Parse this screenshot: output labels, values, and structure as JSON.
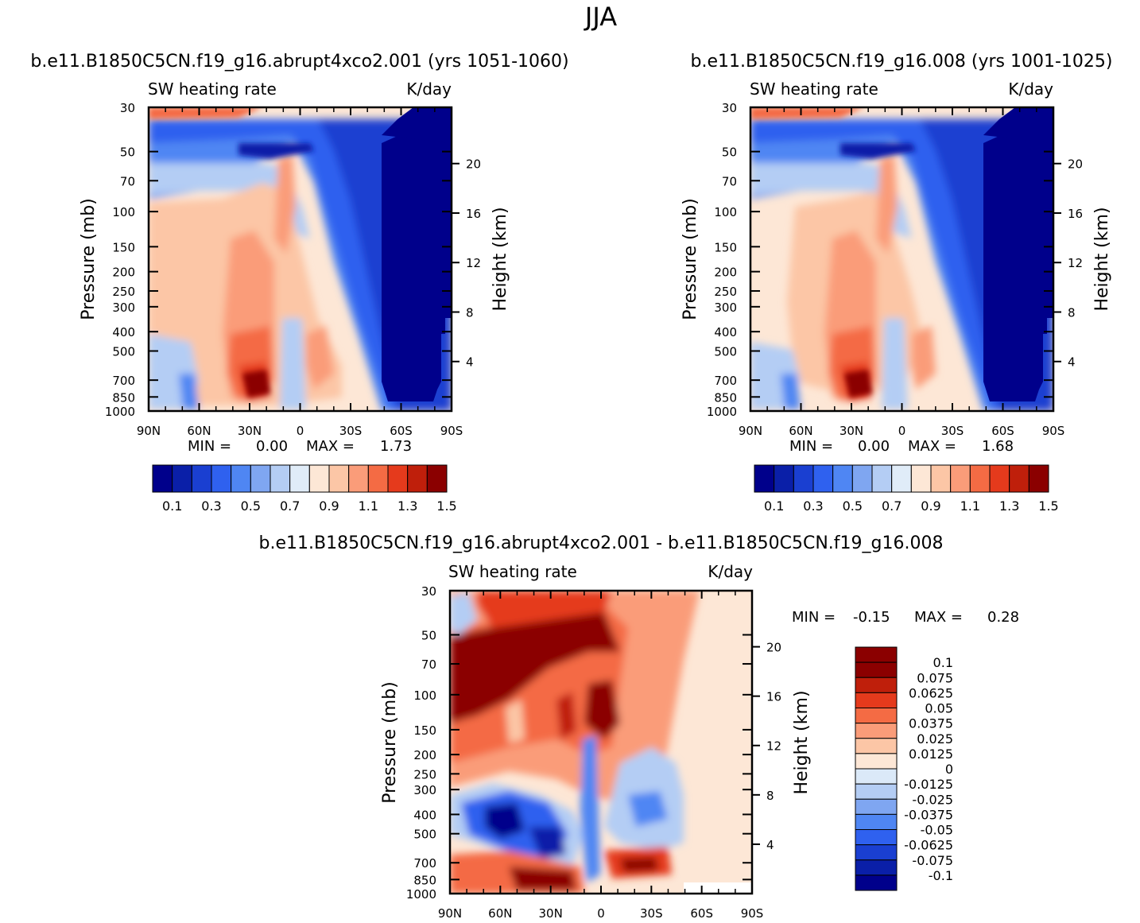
{
  "figure": {
    "title": "JJA",
    "colors": {
      "abs_scale": [
        "#00008b",
        "#0a1fa8",
        "#1a3fd1",
        "#2f61ef",
        "#4f86f3",
        "#7fa6f1",
        "#b4cdf4",
        "#e0ecf8",
        "#fde7d6",
        "#fcc6a6",
        "#fa9c79",
        "#f46b44",
        "#e53a1c",
        "#bf1f0b",
        "#8b0000"
      ],
      "diff_scale": [
        "#00008b",
        "#0a1fa8",
        "#1a3fd1",
        "#2f61ef",
        "#4f86f3",
        "#7fa6f1",
        "#b4cdf4",
        "#dbe9f8",
        "#fde7d6",
        "#fcc6a6",
        "#fa9c79",
        "#f46b44",
        "#e53a1c",
        "#bf1f0b",
        "#8b0000"
      ]
    }
  },
  "chart_data": [
    {
      "id": "panel-a",
      "type": "heatmap",
      "title": "b.e11.B1850C5CN.f19_g16.abrupt4xco2.001 (yrs 1051-1060)",
      "left_label": "SW heating rate",
      "right_label": "K/day",
      "xlabel": "",
      "ylabel": "Pressure (mb)",
      "ylabel_right": "Height (km)",
      "x_ticks": [
        "90N",
        "60N",
        "30N",
        "0",
        "30S",
        "60S",
        "90S"
      ],
      "y_ticks": [
        "30",
        "50",
        "70",
        "100",
        "150",
        "200",
        "250",
        "300",
        "400",
        "500",
        "700",
        "850",
        "1000"
      ],
      "y_ticks_right": [
        "20",
        "16",
        "12",
        "8",
        "4"
      ],
      "min_label": "MIN =",
      "min_value": "0.00",
      "max_label": "MAX =",
      "max_value": "1.73",
      "colorbar_labels": [
        "0.1",
        "0.3",
        "0.5",
        "0.7",
        "0.9",
        "1.1",
        "1.3",
        "1.5"
      ],
      "levels": [
        0.1,
        0.2,
        0.3,
        0.4,
        0.5,
        0.6,
        0.7,
        0.8,
        0.9,
        1.0,
        1.1,
        1.2,
        1.3,
        1.4,
        1.5
      ]
    },
    {
      "id": "panel-b",
      "type": "heatmap",
      "title": "b.e11.B1850C5CN.f19_g16.008 (yrs 1001-1025)",
      "left_label": "SW heating rate",
      "right_label": "K/day",
      "xlabel": "",
      "ylabel": "Pressure (mb)",
      "ylabel_right": "Height (km)",
      "x_ticks": [
        "90N",
        "60N",
        "30N",
        "0",
        "30S",
        "60S",
        "90S"
      ],
      "y_ticks": [
        "30",
        "50",
        "70",
        "100",
        "150",
        "200",
        "250",
        "300",
        "400",
        "500",
        "700",
        "850",
        "1000"
      ],
      "y_ticks_right": [
        "20",
        "16",
        "12",
        "8",
        "4"
      ],
      "min_label": "MIN =",
      "min_value": "0.00",
      "max_label": "MAX =",
      "max_value": "1.68",
      "colorbar_labels": [
        "0.1",
        "0.3",
        "0.5",
        "0.7",
        "0.9",
        "1.1",
        "1.3",
        "1.5"
      ],
      "levels": [
        0.1,
        0.2,
        0.3,
        0.4,
        0.5,
        0.6,
        0.7,
        0.8,
        0.9,
        1.0,
        1.1,
        1.2,
        1.3,
        1.4,
        1.5
      ]
    },
    {
      "id": "panel-c",
      "type": "heatmap",
      "title": "b.e11.B1850C5CN.f19_g16.abrupt4xco2.001 - b.e11.B1850C5CN.f19_g16.008",
      "left_label": "SW heating rate",
      "right_label": "K/day",
      "xlabel": "",
      "ylabel": "Pressure (mb)",
      "ylabel_right": "Height (km)",
      "x_ticks": [
        "90N",
        "60N",
        "30N",
        "0",
        "30S",
        "60S",
        "90S"
      ],
      "y_ticks": [
        "30",
        "50",
        "70",
        "100",
        "150",
        "200",
        "250",
        "300",
        "400",
        "500",
        "700",
        "850",
        "1000"
      ],
      "y_ticks_right": [
        "20",
        "16",
        "12",
        "8",
        "4"
      ],
      "min_label": "MIN =",
      "min_value": "-0.15",
      "max_label": "MAX =",
      "max_value": "0.28",
      "colorbar_labels": [
        "0.1",
        "0.075",
        "0.0625",
        "0.05",
        "0.0375",
        "0.025",
        "0.0125",
        "0",
        "-0.0125",
        "-0.025",
        "-0.0375",
        "-0.05",
        "-0.0625",
        "-0.075",
        "-0.1"
      ],
      "levels": [
        -0.1,
        -0.075,
        -0.0625,
        -0.05,
        -0.0375,
        -0.025,
        -0.0125,
        0,
        0.0125,
        0.025,
        0.0375,
        0.05,
        0.0625,
        0.075,
        0.1
      ]
    }
  ]
}
